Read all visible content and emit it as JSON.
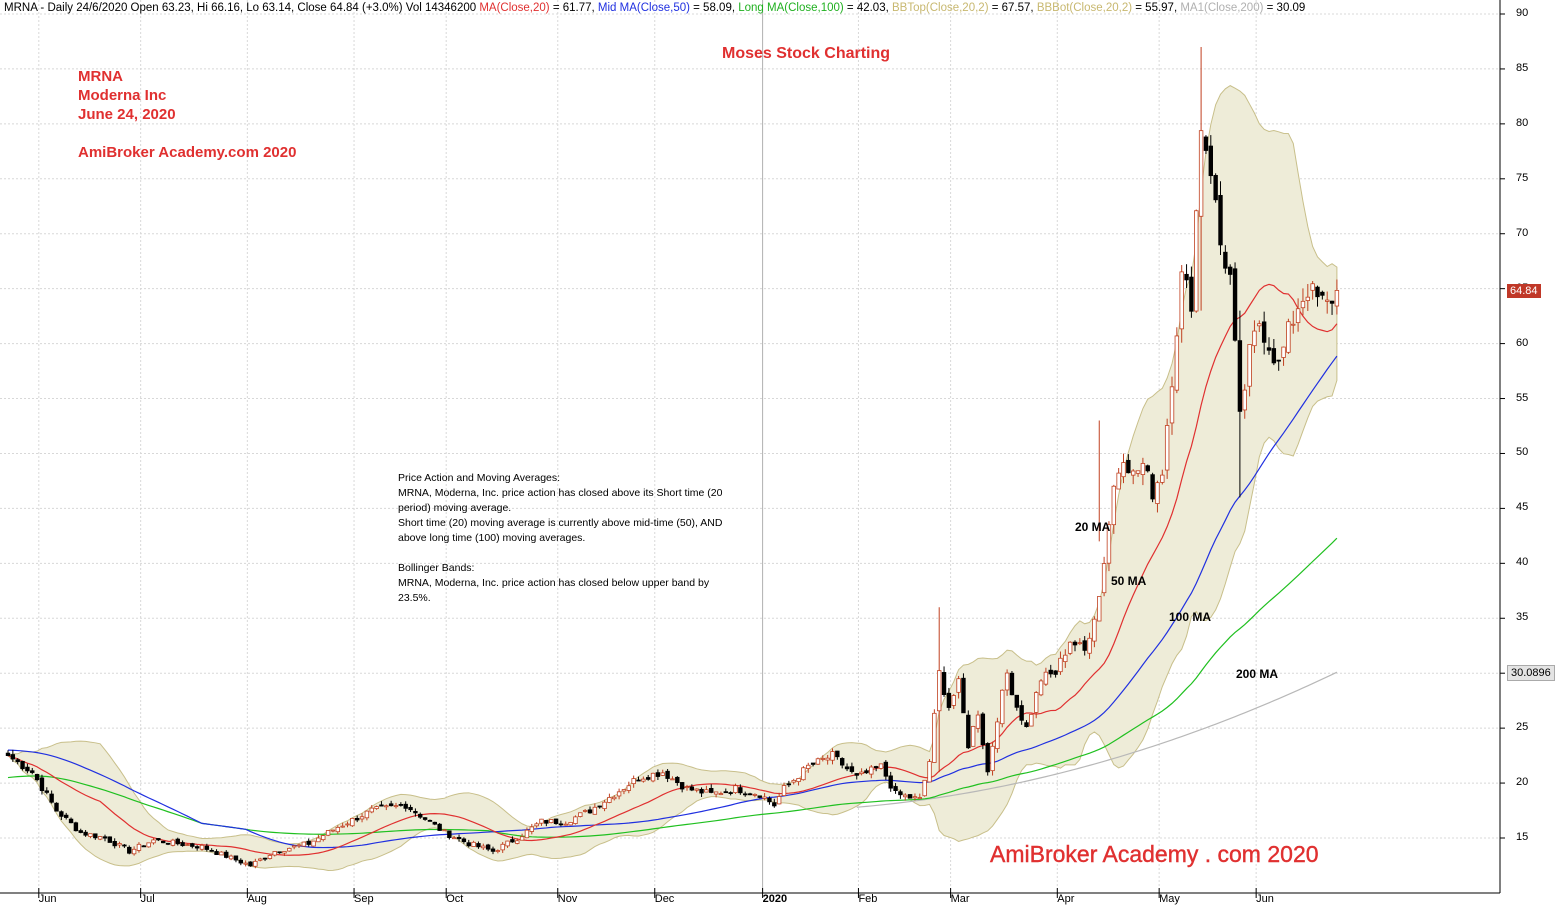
{
  "header": {
    "segments": [
      {
        "text": "MRNA - Daily 24/6/2020 Open 63.23, Hi 66.16, Lo 63.14, Close 64.84 (+3.0%) Vol 14346200 ",
        "color": "#000000"
      },
      {
        "text": "MA(Close,20)",
        "color": "#e03030"
      },
      {
        "text": " = 61.77, ",
        "color": "#000000"
      },
      {
        "text": "Mid MA(Close,50)",
        "color": "#2030e0"
      },
      {
        "text": " = 58.09, ",
        "color": "#000000"
      },
      {
        "text": "Long MA(Close,100)",
        "color": "#20b020"
      },
      {
        "text": " = 42.03, ",
        "color": "#000000"
      },
      {
        "text": "BBTop(Close,20,2)",
        "color": "#c8b870"
      },
      {
        "text": " = 67.57, ",
        "color": "#000000"
      },
      {
        "text": "BBBot(Close,20,2)",
        "color": "#c8b870"
      },
      {
        "text": " = 55.97, ",
        "color": "#000000"
      },
      {
        "text": "MA1(Close,200)",
        "color": "#b0b0b0"
      },
      {
        "text": " = 30.09",
        "color": "#000000"
      }
    ]
  },
  "brand": {
    "chart_title": "Moses Stock Charting",
    "ticker": "MRNA",
    "company": "Moderna Inc",
    "date": "June 24, 2020",
    "site": "AmiBroker Academy.com  2020",
    "footer": "AmiBroker Academy . com 2020"
  },
  "notes": {
    "lines": [
      "Price Action and Moving Averages:",
      "MRNA, Moderna, Inc. price action has closed above its Short time (20",
      "period) moving average.",
      "Short time (20) moving average is currently above mid-time (50), AND",
      "above long time (100) moving averages.",
      "",
      "Bollinger Bands:",
      "MRNA, Moderna, Inc. price action has closed below upper band by",
      "23.5%."
    ]
  },
  "ma_labels": {
    "ma20": "20 MA",
    "ma50": "50 MA",
    "ma100": "100 MA",
    "ma200": "200 MA"
  },
  "price_boxes": {
    "last_close": "64.84",
    "ma200_value": "30.0896"
  },
  "colors": {
    "ma20": "#e03030",
    "ma50": "#2030e0",
    "ma100": "#20c020",
    "ma200": "#b8b8b8",
    "bb_fill": "#eeecd8",
    "bb_line": "#c8bf8a",
    "grid": "#d8d8d8",
    "candle_up": "#c04020",
    "candle_down": "#000000",
    "brand_red": "#e03030"
  },
  "chart_data": {
    "type": "candlestick",
    "ylim": [
      10,
      90
    ],
    "y_ticks": [
      15,
      20,
      25,
      30,
      35,
      40,
      45,
      50,
      55,
      60,
      65,
      70,
      75,
      80,
      85,
      90
    ],
    "x_ticks": [
      {
        "label": "Jun",
        "idx": 8,
        "bold": false
      },
      {
        "label": "Jul",
        "idx": 29,
        "bold": false
      },
      {
        "label": "Aug",
        "idx": 51,
        "bold": false
      },
      {
        "label": "Sep",
        "idx": 73,
        "bold": false
      },
      {
        "label": "Oct",
        "idx": 92,
        "bold": false
      },
      {
        "label": "Nov",
        "idx": 115,
        "bold": false
      },
      {
        "label": "Dec",
        "idx": 135,
        "bold": false
      },
      {
        "label": "2020",
        "idx": 156,
        "bold": true
      },
      {
        "label": "Feb",
        "idx": 177,
        "bold": false
      },
      {
        "label": "Mar",
        "idx": 196,
        "bold": false
      },
      {
        "label": "Apr",
        "idx": 218,
        "bold": false
      },
      {
        "label": "May",
        "idx": 239,
        "bold": false
      },
      {
        "label": "Jun",
        "idx": 259,
        "bold": false
      }
    ],
    "close_anchors": [
      [
        0,
        22.5
      ],
      [
        5,
        21.0
      ],
      [
        10,
        17.5
      ],
      [
        15,
        15.5
      ],
      [
        20,
        15.0
      ],
      [
        25,
        13.8
      ],
      [
        30,
        14.8
      ],
      [
        40,
        14.2
      ],
      [
        50,
        12.5
      ],
      [
        55,
        13.8
      ],
      [
        62,
        14.5
      ],
      [
        68,
        16.0
      ],
      [
        75,
        17.5
      ],
      [
        82,
        18.0
      ],
      [
        90,
        15.5
      ],
      [
        95,
        14.5
      ],
      [
        100,
        13.8
      ],
      [
        105,
        15.0
      ],
      [
        110,
        16.5
      ],
      [
        115,
        16.5
      ],
      [
        120,
        17.5
      ],
      [
        125,
        19.0
      ],
      [
        130,
        20.5
      ],
      [
        135,
        21.0
      ],
      [
        140,
        19.5
      ],
      [
        145,
        19.0
      ],
      [
        150,
        19.5
      ],
      [
        155,
        19.0
      ],
      [
        158,
        18.0
      ],
      [
        160,
        19.5
      ],
      [
        165,
        21.5
      ],
      [
        170,
        22.5
      ],
      [
        175,
        20.5
      ],
      [
        180,
        21.5
      ],
      [
        183,
        19.0
      ],
      [
        188,
        18.5
      ],
      [
        190,
        22.0
      ],
      [
        192,
        30.0
      ],
      [
        194,
        27.0
      ],
      [
        196,
        29.0
      ],
      [
        198,
        23.5
      ],
      [
        200,
        26.5
      ],
      [
        202,
        21.0
      ],
      [
        204,
        26.0
      ],
      [
        206,
        30.0
      ],
      [
        208,
        27.0
      ],
      [
        210,
        25.0
      ],
      [
        213,
        29.5
      ],
      [
        216,
        30.0
      ],
      [
        219,
        33.0
      ],
      [
        222,
        32.0
      ],
      [
        225,
        37.0
      ],
      [
        228,
        47.0
      ],
      [
        230,
        50.0
      ],
      [
        232,
        48.0
      ],
      [
        234,
        49.0
      ],
      [
        236,
        46.5
      ],
      [
        238,
        48.5
      ],
      [
        240,
        57.0
      ],
      [
        242,
        66.0
      ],
      [
        244,
        64.0
      ],
      [
        246,
        80.0
      ],
      [
        248,
        76.0
      ],
      [
        250,
        69.0
      ],
      [
        252,
        66.0
      ],
      [
        254,
        53.0
      ],
      [
        256,
        59.0
      ],
      [
        258,
        62.0
      ],
      [
        260,
        60.0
      ],
      [
        262,
        58.0
      ],
      [
        264,
        61.0
      ],
      [
        266,
        63.5
      ],
      [
        268,
        65.0
      ],
      [
        270,
        64.0
      ],
      [
        272,
        63.5
      ],
      [
        274,
        64.84
      ]
    ],
    "spikes": [
      {
        "idx": 192,
        "high": 36.0,
        "low": 21.0
      },
      {
        "idx": 225,
        "high": 53.0,
        "low": 42.0
      },
      {
        "idx": 246,
        "high": 87.0,
        "low": 63.0
      },
      {
        "idx": 254,
        "high": 63.0,
        "low": 46.0
      }
    ],
    "ma200_range": [
      17.8,
      30.09
    ]
  }
}
